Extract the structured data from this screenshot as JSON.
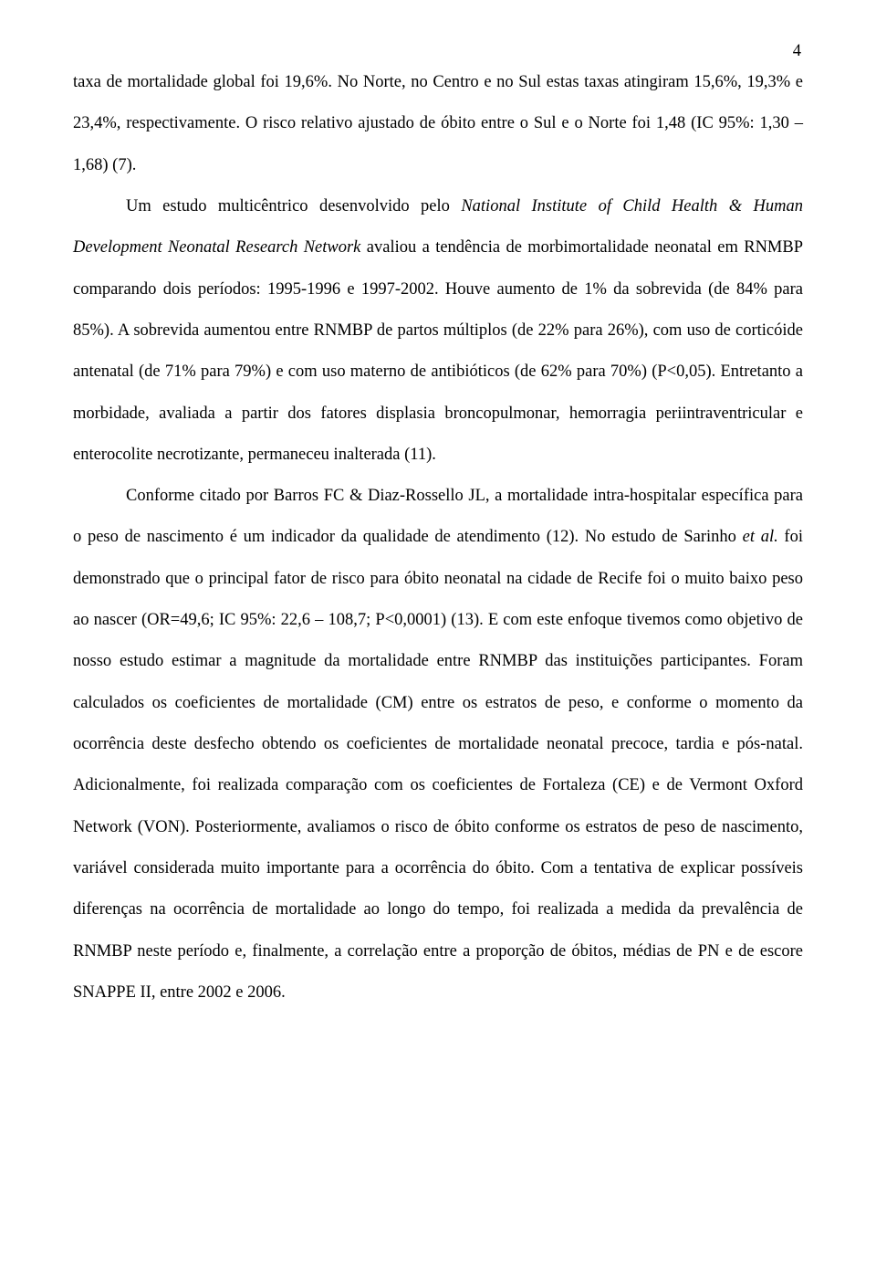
{
  "page_number": "4",
  "paragraphs": {
    "p1": {
      "text": "taxa de mortalidade global foi 19,6%. No Norte, no Centro e no Sul estas taxas atingiram 15,6%, 19,3% e 23,4%, respectivamente. O risco relativo ajustado de óbito entre o Sul e o Norte foi 1,48 (IC 95%: 1,30 – 1,68) (7).",
      "indent": false
    },
    "p2a": "Um estudo multicêntrico desenvolvido pelo ",
    "p2_italic1": "National Institute of Child Health & Human Development Neonatal Research Network",
    "p2b": " avaliou a tendência de morbimortalidade neonatal em RNMBP comparando dois períodos: 1995-1996 e 1997-2002. Houve aumento de 1% da sobrevida (de 84% para 85%). A sobrevida aumentou entre RNMBP de partos múltiplos (de 22% para 26%), com uso de corticóide antenatal (de 71% para 79%) e com uso materno de antibióticos (de 62% para 70%) (P<0,05). Entretanto a morbidade, avaliada a partir dos fatores displasia broncopulmonar, hemorragia periintraventricular e enterocolite necrotizante, permaneceu inalterada (11).",
    "p3a": "Conforme citado por Barros FC & Diaz-Rossello JL, a mortalidade intra-hospitalar específica para o peso de nascimento é um indicador da qualidade de atendimento (12). No estudo de Sarinho ",
    "p3_italic1": "et al.",
    "p3b": " foi demonstrado que o principal fator de risco para óbito neonatal na cidade de Recife foi o muito baixo peso ao nascer (OR=49,6; IC 95%: 22,6 – 108,7; P<0,0001) (13). E com este enfoque tivemos como objetivo de nosso estudo estimar a magnitude da mortalidade entre RNMBP das instituições participantes. Foram calculados os coeficientes de mortalidade (CM) entre os estratos de peso, e conforme o momento da ocorrência deste desfecho obtendo os coeficientes de mortalidade neonatal precoce, tardia e pós-natal. Adicionalmente, foi realizada comparação com os coeficientes de Fortaleza (CE) e de Vermont Oxford Network (VON). Posteriormente, avaliamos o risco de óbito conforme os estratos de peso de nascimento, variável considerada muito importante para a ocorrência do óbito. Com a tentativa de explicar possíveis diferenças na ocorrência de mortalidade ao longo do tempo, foi realizada a medida da prevalência de RNMBP neste período e, finalmente, a correlação entre a proporção de óbitos, médias de PN e de escore SNAPPE II, entre 2002 e 2006."
  }
}
